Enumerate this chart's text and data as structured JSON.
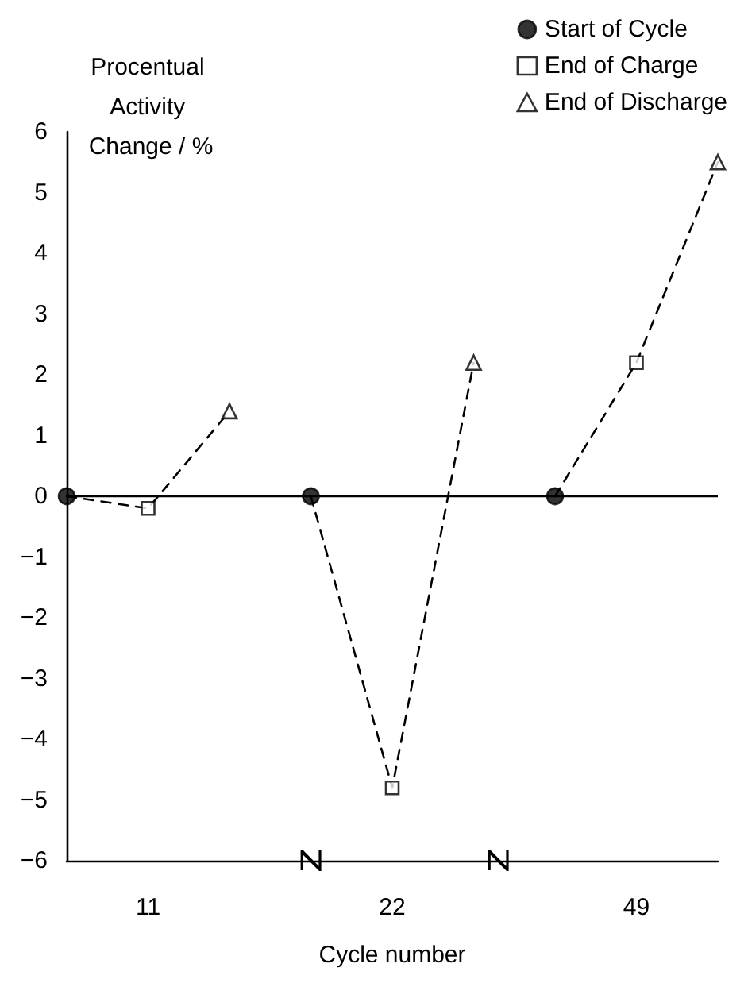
{
  "chart_data": {
    "type": "scatter",
    "ylabel": "Procentual Activity Change / %",
    "xlabel": "Cycle number",
    "categories": [
      null,
      "11",
      null,
      null,
      "22",
      null,
      null,
      "49",
      null
    ],
    "series": [
      {
        "name": "Start of Cycle",
        "color": "#000000",
        "marker": "circle",
        "values": [
          0,
          null,
          null,
          0,
          null,
          null,
          0,
          null,
          null
        ]
      },
      {
        "name": "End of Charge",
        "color": "#000000",
        "marker": "square",
        "values": [
          null,
          -0.2,
          null,
          null,
          -4.8,
          null,
          null,
          2.2,
          null
        ]
      },
      {
        "name": "End of Discharge",
        "color": "#000000",
        "marker": "triangle",
        "values": [
          null,
          null,
          1.4,
          null,
          null,
          2.2,
          null,
          null,
          5.5
        ]
      },
      {
        "type": "line",
        "color": "#000000",
        "marker": "none",
        "line_style": "dashed",
        "values": [
          0,
          -0.2,
          1.4,
          null,
          null,
          null,
          null,
          null,
          null
        ]
      },
      {
        "type": "line",
        "color": "#000000",
        "marker": "none",
        "line_style": "dashed",
        "values": [
          null,
          null,
          null,
          0,
          -4.8,
          2.2,
          null,
          null,
          null
        ]
      },
      {
        "type": "line",
        "color": "#000000",
        "marker": "none",
        "line_style": "dashed",
        "values": [
          null,
          null,
          null,
          null,
          null,
          null,
          0,
          2.2,
          5.5
        ]
      }
    ],
    "ylim": [
      -6,
      6
    ],
    "yticks": [
      -6,
      -5,
      -4,
      -3,
      -2,
      -1,
      0,
      1,
      2,
      3,
      4,
      5,
      6
    ],
    "ref_lines": [
      {
        "axis": "y",
        "value": 0,
        "color": "#000000",
        "line_style": "solid"
      }
    ],
    "grid": false,
    "legend": "top right"
  }
}
